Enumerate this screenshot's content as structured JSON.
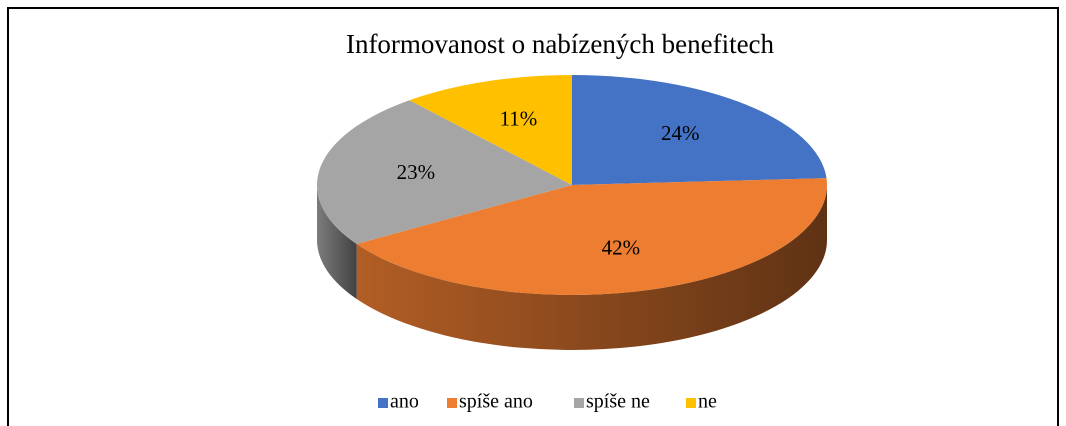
{
  "chart_data": {
    "type": "pie",
    "title": "Informovanost o nabízených benefitech",
    "categories": [
      "ano",
      "spíše ano",
      "spíše ne",
      "ne"
    ],
    "values": [
      24,
      42,
      23,
      11
    ],
    "value_labels": [
      "24%",
      "42%",
      "23%",
      "11%"
    ],
    "colors": [
      "#4472c4",
      "#ed7d31",
      "#a5a5a5",
      "#ffc000"
    ],
    "legend": "bottom"
  }
}
